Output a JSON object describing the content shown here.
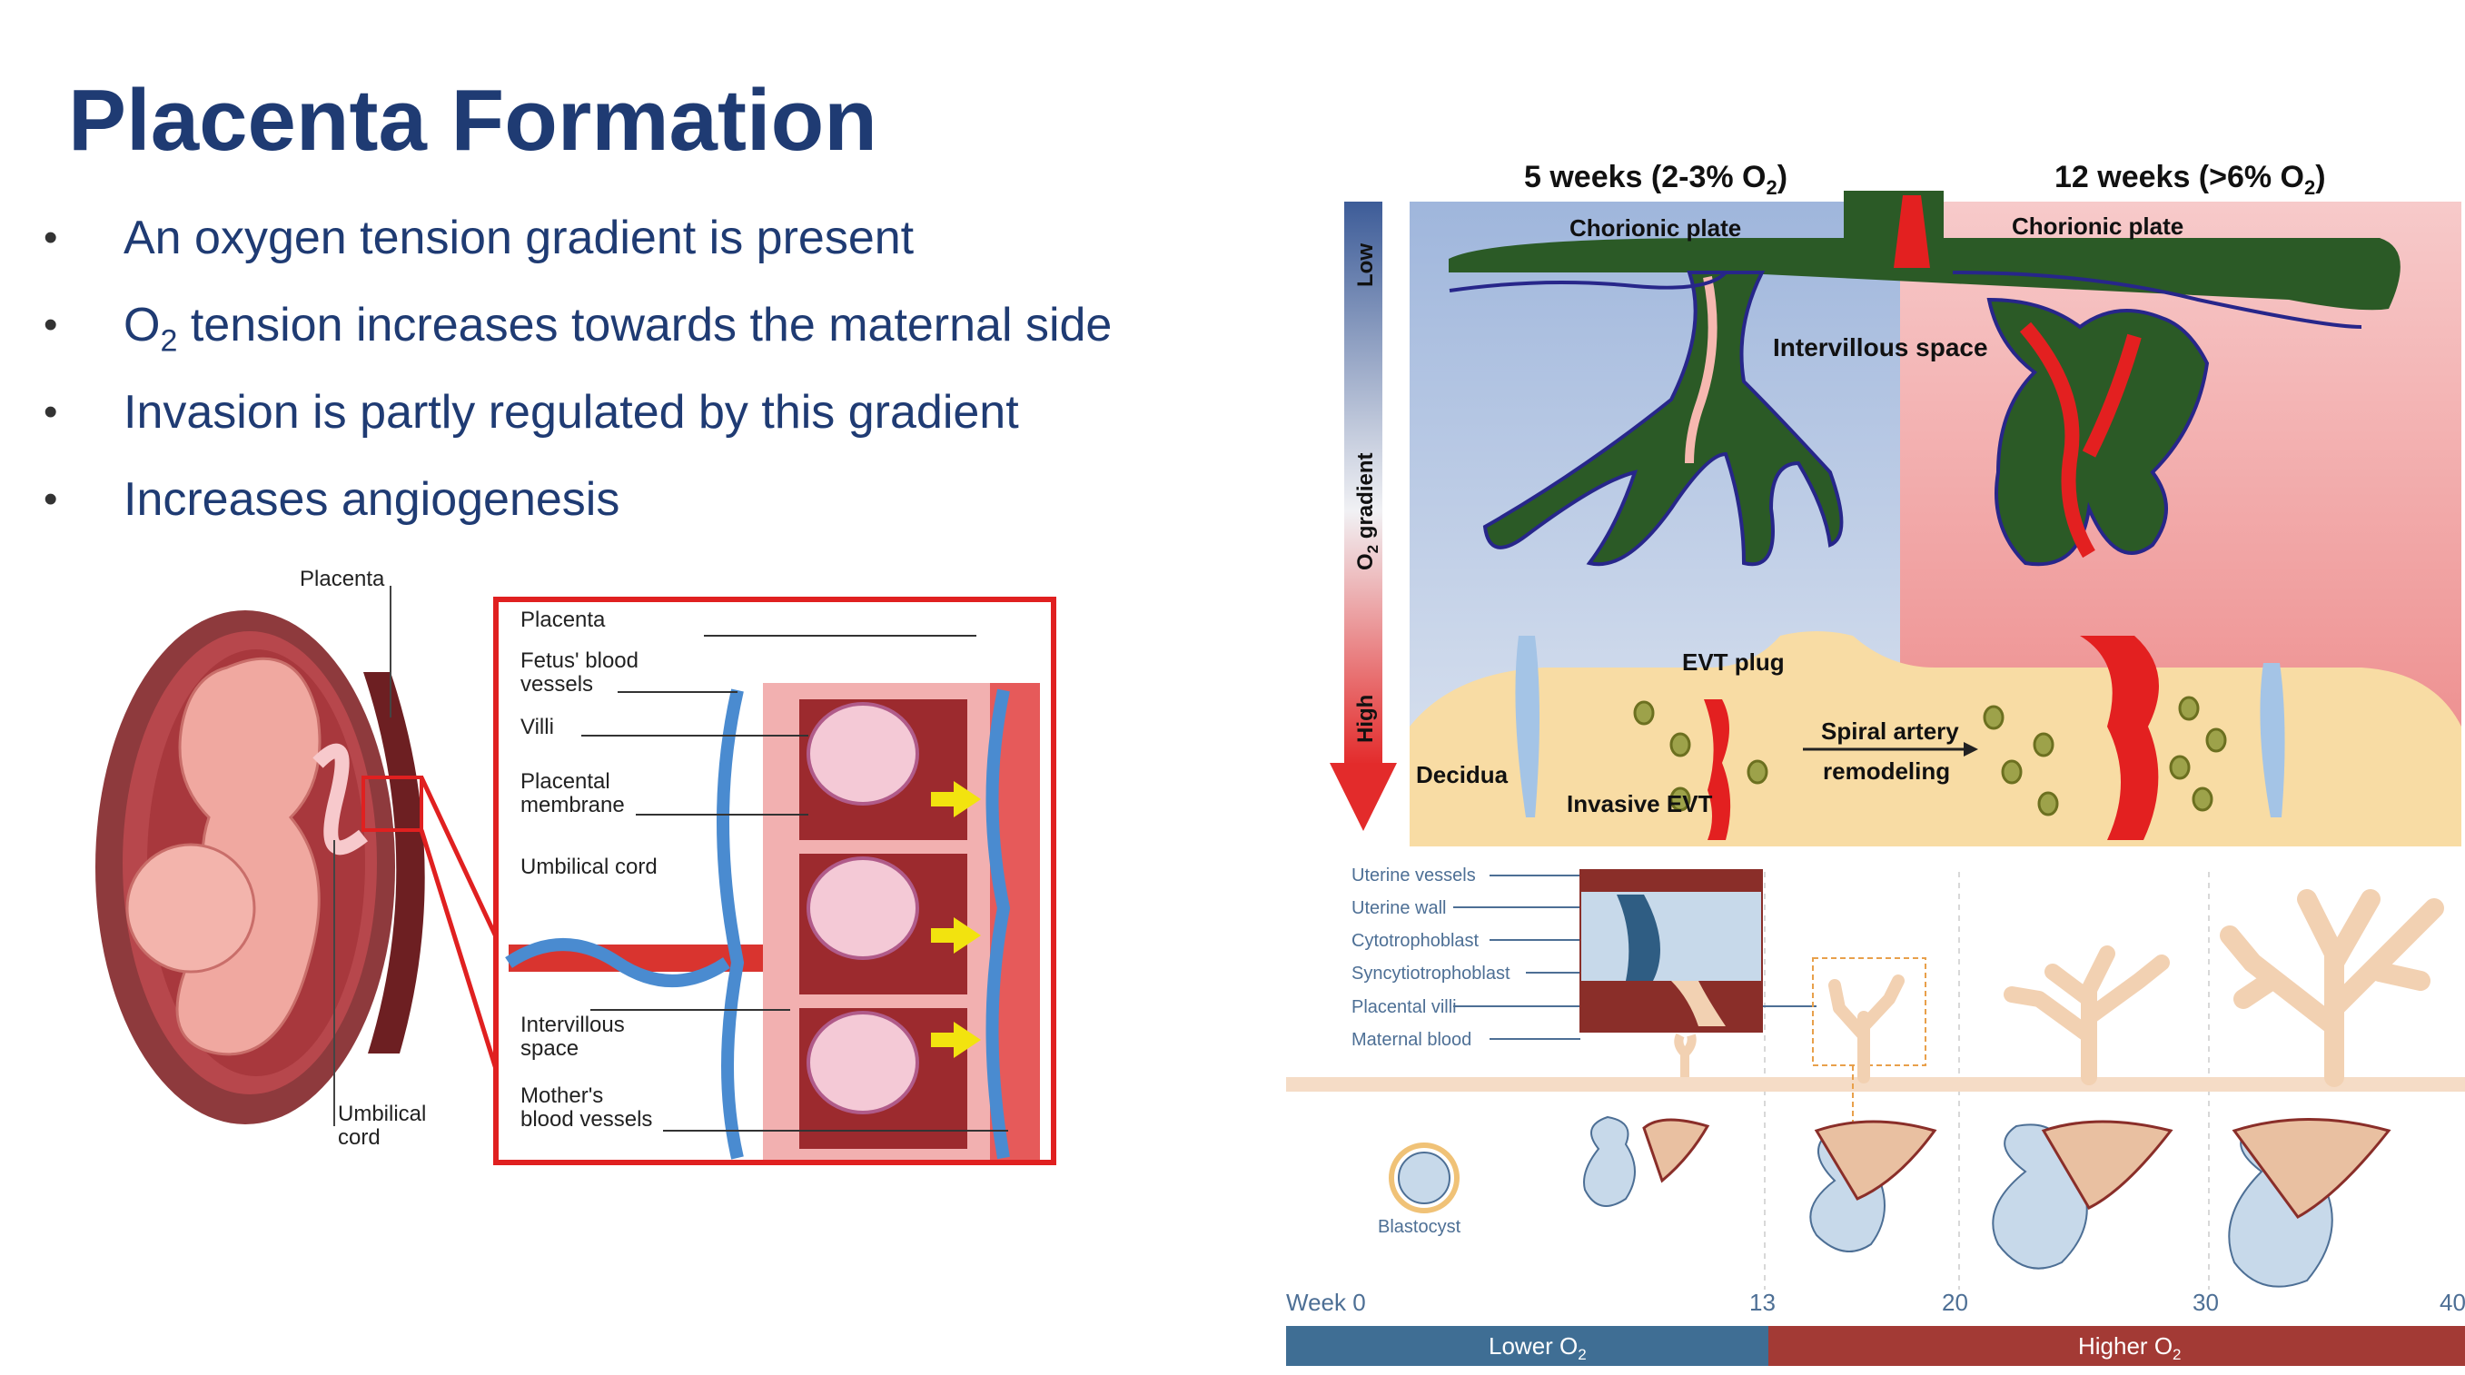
{
  "slide": {
    "title": "Placenta Formation",
    "bullets": [
      {
        "id": "b1",
        "text": "An oxygen tension gradient is present"
      },
      {
        "id": "b2",
        "pre": "O",
        "sub": "2",
        "post": " tension increases towards the maternal side"
      },
      {
        "id": "b3",
        "text": "Invasion is partly regulated by this gradient"
      },
      {
        "id": "b4",
        "text": "Increases angiogenesis"
      }
    ]
  },
  "fetus_figure": {
    "label_placenta": "Placenta",
    "label_umbilical_1": "Umbilical",
    "label_umbilical_2": "cord",
    "inset": {
      "placenta": "Placenta",
      "fetus_vessels_1": "Fetus' blood",
      "fetus_vessels_2": "vessels",
      "villi": "Villi",
      "membrane_1": "Placental",
      "membrane_2": "membrane",
      "umbilical_cord": "Umbilical cord",
      "intervillous_1": "Intervillous",
      "intervillous_2": "space",
      "mother_vessels_1": "Mother's",
      "mother_vessels_2": "blood vessels"
    }
  },
  "oxygen_figure": {
    "col_left": "5 weeks (2-3% O",
    "col_left_sub": "2",
    "col_left_end": ")",
    "col_right": "12 weeks (>6% O",
    "col_right_sub": "2",
    "col_right_end": ")",
    "chorionic_left": "Chorionic plate",
    "chorionic_right": "Chorionic plate",
    "intervillous": "Intervillous space",
    "evt_plug": "EVT plug",
    "decidua": "Decidua",
    "invasive_evt": "Invasive EVT",
    "spiral_1": "Spiral artery",
    "spiral_2": "remodeling",
    "axis_low": "Low",
    "axis_gradient": "O",
    "axis_gradient_sub": "2",
    "axis_gradient_end": " gradient",
    "axis_high": "High"
  },
  "timeline_figure": {
    "labels": [
      "Uterine vessels",
      "Uterine wall",
      "Cytotrophoblast",
      "Syncytiotrophoblast",
      "Placental villi",
      "Maternal blood"
    ],
    "blastocyst": "Blastocyst",
    "week_prefix": "Week 0",
    "weeks": [
      "13",
      "20",
      "30",
      "40"
    ],
    "lower": "Lower O",
    "lower_sub": "2",
    "higher": "Higher O",
    "higher_sub": "2",
    "colors": {
      "lower_bar": "#3f6e94",
      "higher_bar": "#a33a35"
    }
  }
}
